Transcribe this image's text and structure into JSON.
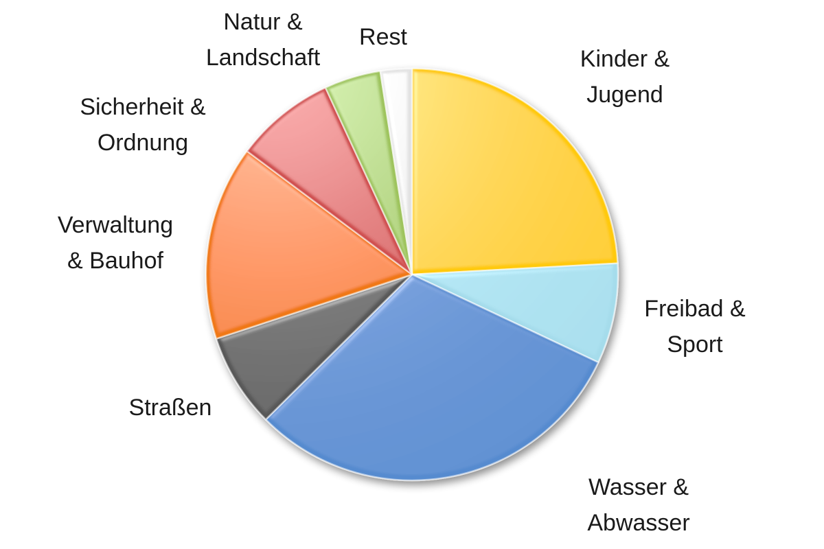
{
  "chart_data": {
    "type": "pie",
    "title": "",
    "start_angle_deg": 0,
    "direction": "clockwise",
    "slices": [
      {
        "label_lines": [
          "Kinder &",
          "Jugend"
        ],
        "value": 24.5,
        "color": "#FFC90A"
      },
      {
        "label_lines": [
          "Freibad &",
          "Sport"
        ],
        "value": 8.0,
        "color": "#A5DCEB"
      },
      {
        "label_lines": [
          "Wasser &",
          "Abwasser"
        ],
        "value": 31.0,
        "color": "#568BCF"
      },
      {
        "label_lines": [
          "Straßen"
        ],
        "value": 7.5,
        "color": "#595959"
      },
      {
        "label_lines": [
          "Verwaltung",
          "& Bauhof"
        ],
        "value": 15.5,
        "color": "#F07814"
      },
      {
        "label_lines": [
          "Sicherheit &",
          "Ordnung"
        ],
        "value": 8.0,
        "color": "#CF4E4E"
      },
      {
        "label_lines": [
          "Natur &",
          "Landschaft"
        ],
        "value": 4.5,
        "color": "#9DC35C"
      },
      {
        "label_lines": [
          "Rest"
        ],
        "value": 2.5,
        "color": "#E2E2E2"
      }
    ]
  }
}
